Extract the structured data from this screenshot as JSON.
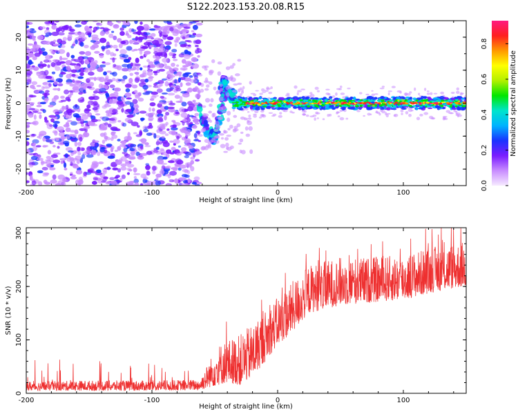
{
  "figure_title": "S122.2023.153.20.08.R15",
  "chart_data": [
    {
      "type": "heatmap",
      "ylabel": "Frequency (Hz)",
      "xlabel": "Height of straight line (km)",
      "xlim": [
        -200,
        150
      ],
      "ylim": [
        -25,
        25
      ],
      "x_ticks": [
        -200,
        -100,
        0,
        100
      ],
      "y_ticks": [
        -20,
        -10,
        0,
        10,
        20
      ],
      "grid": false,
      "noise_region_x": [
        -200,
        -62
      ],
      "transition_region_x": [
        -62,
        -35
      ],
      "signal_line_frequency": 0,
      "transition_path": [
        {
          "x": -62,
          "y": -2
        },
        {
          "x": -58,
          "y": -6
        },
        {
          "x": -54,
          "y": -9
        },
        {
          "x": -51,
          "y": -11
        },
        {
          "x": -48,
          "y": -7
        },
        {
          "x": -45,
          "y": -3
        },
        {
          "x": -43,
          "y": 1
        },
        {
          "x": -44,
          "y": 5
        },
        {
          "x": -42,
          "y": 7
        },
        {
          "x": -40,
          "y": 4
        },
        {
          "x": -37,
          "y": 2
        },
        {
          "x": -35,
          "y": 3
        }
      ],
      "colorbar": {
        "label": "Normalized spectral amplitude",
        "range": [
          0,
          0.93
        ],
        "ticks": [
          0.0,
          0.2,
          0.4,
          0.6,
          0.8
        ],
        "tick_labels": [
          "0.0",
          "0.2",
          "0.4",
          "0.6",
          "0.8"
        ],
        "colors": [
          "#f6eaff",
          "#c88cff",
          "#7a1cff",
          "#1a33ff",
          "#00b3ff",
          "#00e5cc",
          "#00e600",
          "#b3f000",
          "#ffff00",
          "#ff9900",
          "#ff2020",
          "#ff1a80"
        ]
      }
    },
    {
      "type": "line",
      "ylabel": "SNR (10 * v/v)",
      "xlabel": "Height of straight line (km)",
      "xlim": [
        -200,
        150
      ],
      "ylim": [
        0,
        310
      ],
      "x_ticks": [
        -200,
        -100,
        0,
        100
      ],
      "y_ticks": [
        0,
        100,
        200,
        300
      ],
      "grid": false,
      "series": [
        {
          "color": "#ee3030",
          "envelope": [
            {
              "x": -200,
              "low": 5,
              "high": 22
            },
            {
              "x": -150,
              "low": 5,
              "high": 24
            },
            {
              "x": -100,
              "low": 5,
              "high": 24
            },
            {
              "x": -62,
              "low": 6,
              "high": 26
            },
            {
              "x": -48,
              "low": 15,
              "high": 90
            },
            {
              "x": -40,
              "low": 20,
              "high": 100
            },
            {
              "x": -30,
              "low": 15,
              "high": 110
            },
            {
              "x": -20,
              "low": 30,
              "high": 130
            },
            {
              "x": -10,
              "low": 60,
              "high": 155
            },
            {
              "x": 0,
              "low": 90,
              "high": 180
            },
            {
              "x": 10,
              "low": 110,
              "high": 205
            },
            {
              "x": 25,
              "low": 150,
              "high": 240
            },
            {
              "x": 50,
              "low": 165,
              "high": 255
            },
            {
              "x": 75,
              "low": 170,
              "high": 255
            },
            {
              "x": 100,
              "low": 175,
              "high": 260
            },
            {
              "x": 125,
              "low": 190,
              "high": 275
            },
            {
              "x": 150,
              "low": 200,
              "high": 285
            }
          ]
        }
      ]
    }
  ]
}
